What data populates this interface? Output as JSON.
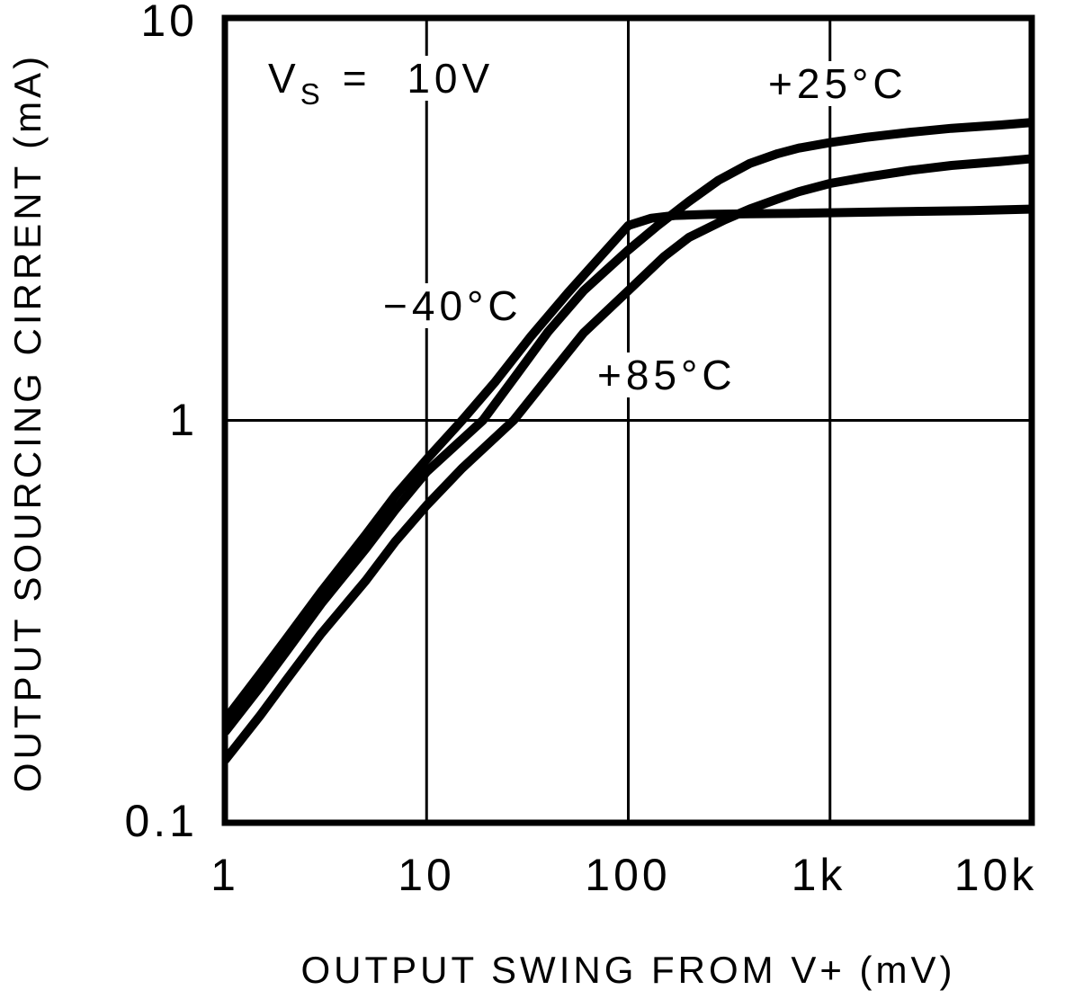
{
  "page": {
    "background": "#ffffff",
    "ink": "#000000"
  },
  "chart_data": {
    "type": "line",
    "title": "",
    "xlabel": "OUTPUT SWING FROM V+ (mV)",
    "ylabel": "OUTPUT SOURCING CIRRENT (mA)",
    "x_scale": "log",
    "y_scale": "log",
    "xlim": [
      1,
      10000
    ],
    "ylim": [
      0.1,
      10
    ],
    "grid": "decade lines only",
    "legend_position": "inline-annotations",
    "curve_color": "#000000",
    "x_ticks": [
      {
        "value": 1,
        "label": "1"
      },
      {
        "value": 10,
        "label": "10"
      },
      {
        "value": 100,
        "label": "100"
      },
      {
        "value": 1000,
        "label": "1k"
      },
      {
        "value": 10000,
        "label": "10k"
      }
    ],
    "y_ticks": [
      {
        "value": 10,
        "label": "10"
      },
      {
        "value": 1,
        "label": "1"
      },
      {
        "value": 0.1,
        "label": "0.1"
      }
    ],
    "condition": {
      "base": "V",
      "subscript": "S",
      "rest": "= 10V"
    },
    "series": [
      {
        "name": "minus-40C",
        "label": "−40°C",
        "points": [
          [
            1,
            0.18
          ],
          [
            1.5,
            0.235
          ],
          [
            2,
            0.285
          ],
          [
            3,
            0.375
          ],
          [
            5,
            0.52
          ],
          [
            7,
            0.65
          ],
          [
            10,
            0.8
          ],
          [
            15,
            1.0
          ],
          [
            22,
            1.25
          ],
          [
            33,
            1.62
          ],
          [
            50,
            2.07
          ],
          [
            70,
            2.5
          ],
          [
            100,
            3.05
          ],
          [
            130,
            3.18
          ],
          [
            170,
            3.23
          ],
          [
            250,
            3.25
          ],
          [
            400,
            3.26
          ],
          [
            700,
            3.27
          ],
          [
            1000,
            3.28
          ],
          [
            2000,
            3.3
          ],
          [
            5000,
            3.32
          ],
          [
            10000,
            3.35
          ]
        ]
      },
      {
        "name": "plus-25C",
        "label": "+25°C",
        "points": [
          [
            1,
            0.168
          ],
          [
            1.5,
            0.218
          ],
          [
            2,
            0.265
          ],
          [
            3,
            0.35
          ],
          [
            5,
            0.48
          ],
          [
            7,
            0.6
          ],
          [
            10,
            0.745
          ],
          [
            19,
            1.0
          ],
          [
            28,
            1.3
          ],
          [
            40,
            1.66
          ],
          [
            60,
            2.1
          ],
          [
            100,
            2.65
          ],
          [
            140,
            3.05
          ],
          [
            200,
            3.5
          ],
          [
            280,
            3.95
          ],
          [
            400,
            4.35
          ],
          [
            550,
            4.6
          ],
          [
            700,
            4.75
          ],
          [
            1000,
            4.9
          ],
          [
            1500,
            5.05
          ],
          [
            2500,
            5.2
          ],
          [
            4000,
            5.32
          ],
          [
            7000,
            5.42
          ],
          [
            10000,
            5.5
          ]
        ]
      },
      {
        "name": "plus-85C",
        "label": "+85°C",
        "points": [
          [
            1,
            0.143
          ],
          [
            1.5,
            0.185
          ],
          [
            2,
            0.225
          ],
          [
            3,
            0.295
          ],
          [
            5,
            0.4
          ],
          [
            7,
            0.5
          ],
          [
            10,
            0.615
          ],
          [
            15,
            0.76
          ],
          [
            27,
            1.0
          ],
          [
            40,
            1.28
          ],
          [
            60,
            1.65
          ],
          [
            100,
            2.1
          ],
          [
            150,
            2.55
          ],
          [
            200,
            2.85
          ],
          [
            300,
            3.15
          ],
          [
            400,
            3.35
          ],
          [
            550,
            3.55
          ],
          [
            700,
            3.7
          ],
          [
            1000,
            3.88
          ],
          [
            1500,
            4.02
          ],
          [
            2500,
            4.18
          ],
          [
            4000,
            4.3
          ],
          [
            7000,
            4.4
          ],
          [
            10000,
            4.47
          ]
        ]
      }
    ]
  }
}
